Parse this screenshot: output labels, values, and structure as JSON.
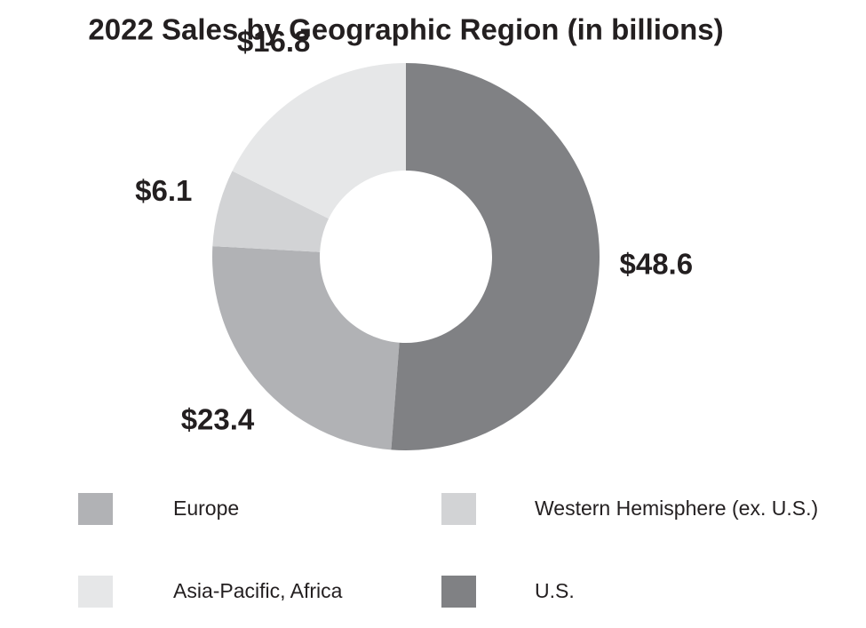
{
  "chart_data": {
    "type": "donut",
    "title": "2022 Sales by Geographic Region (in billions)",
    "categories": [
      "Europe",
      "Western Hemisphere (ex. U.S.)",
      "Asia-Pacific, Africa",
      "U.S."
    ],
    "values": [
      23.4,
      6.1,
      16.8,
      48.6
    ],
    "value_labels": [
      "$23.4",
      "$6.1",
      "$16.8",
      "$48.6"
    ],
    "colors": [
      "#b1b2b5",
      "#d2d3d5",
      "#e6e7e8",
      "#808184"
    ]
  }
}
